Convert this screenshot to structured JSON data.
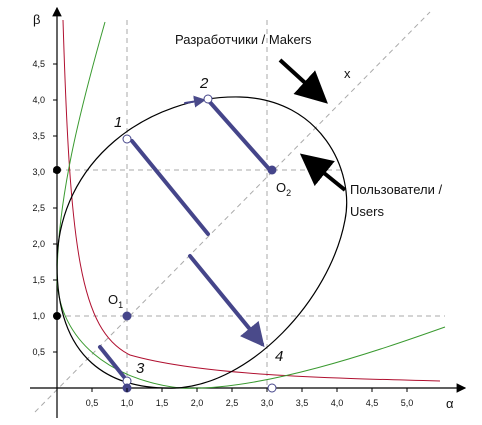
{
  "axes": {
    "x_label": "α",
    "y_label": "β",
    "x_ticks": [
      "0,5",
      "1,0",
      "1,5",
      "2,0",
      "2,5",
      "3,0",
      "3,5",
      "4,0",
      "4,5",
      "5,0"
    ],
    "y_ticks": [
      "0,5",
      "1,0",
      "1,5",
      "2,0",
      "2,5",
      "3,0",
      "3,5",
      "4,0",
      "4,5"
    ]
  },
  "labels": {
    "makers": "Разработчики / Makers",
    "diagonal": "x",
    "users": [
      "Пользователи /",
      "Users"
    ]
  },
  "points": [
    {
      "label": "1"
    },
    {
      "label": "2"
    },
    {
      "label": "3"
    },
    {
      "label": "4"
    }
  ],
  "origins": [
    {
      "label": "O",
      "sub": "1"
    },
    {
      "label": "O",
      "sub": "2"
    }
  ]
}
